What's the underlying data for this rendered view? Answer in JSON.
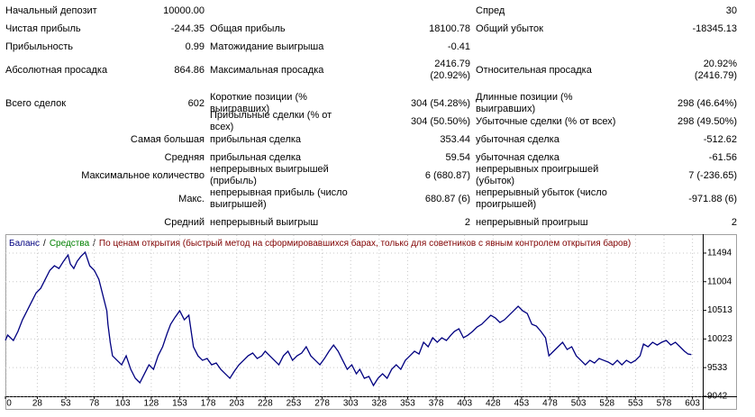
{
  "report": {
    "rows": [
      [
        [
          "Начальный депозит",
          "10000.00"
        ],
        null,
        [
          "Спред",
          "30"
        ]
      ],
      [
        [
          "Чистая прибыль",
          "-244.35"
        ],
        [
          "Общая прибыль",
          "18100.78"
        ],
        [
          "Общий убыток",
          "-18345.13"
        ]
      ],
      [
        [
          "Прибыльность",
          "0.99"
        ],
        [
          "Матожидание выигрыша",
          "-0.41"
        ],
        null
      ],
      [
        [
          "Абсолютная просадка",
          "864.86"
        ],
        [
          "Максимальная просадка",
          "2416.79\n(20.92%)"
        ],
        [
          "Относительная просадка",
          "20.92%\n(2416.79)"
        ]
      ],
      [
        [
          "Всего сделок",
          "602"
        ],
        [
          "Короткие позиции (% выигравших)",
          "304 (54.28%)"
        ],
        [
          "Длинные позиции (% выигравших)",
          "298 (46.64%)"
        ]
      ],
      [
        null,
        [
          "Прибыльные сделки (% от всех)",
          "304 (50.50%)"
        ],
        [
          "Убыточные сделки (% от всех)",
          "298 (49.50%)"
        ]
      ],
      [
        [
          "Самая большая"
        ],
        [
          "прибыльная сделка",
          "353.44"
        ],
        [
          "убыточная сделка",
          "-512.62"
        ]
      ],
      [
        [
          "Средняя"
        ],
        [
          "прибыльная сделка",
          "59.54"
        ],
        [
          "убыточная сделка",
          "-61.56"
        ]
      ],
      [
        [
          "Максимальное количество"
        ],
        [
          "непрерывных выигрышей (прибыль)",
          "6 (680.87)"
        ],
        [
          "непрерывных проигрышей (убыток)",
          "7 (-236.65)"
        ]
      ],
      [
        [
          "Макс."
        ],
        [
          "непрерывная прибыль (число выигрышей)",
          "680.87 (6)"
        ],
        [
          "непрерывный убыток (число проигрышей)",
          "-971.88 (6)"
        ]
      ],
      [
        [
          "Средний"
        ],
        [
          "непрерывный выигрыш",
          "2"
        ],
        [
          "непрерывный проигрыш",
          "2"
        ]
      ]
    ]
  },
  "chart_data": {
    "type": "line",
    "legend_separator": "/",
    "equity_label": "Средства",
    "equity_color": "#008000",
    "subtitle": "По ценам открытия (быстрый метод на сформировавшихся барах, только для советников с явным контролем открытия баров)",
    "subtitle_color": "#800000",
    "x": [
      0,
      2,
      7,
      11,
      15,
      19,
      23,
      27,
      31,
      35,
      39,
      43,
      47,
      51,
      55,
      57,
      60,
      63,
      66,
      70,
      74,
      78,
      82,
      86,
      89,
      90,
      92,
      94,
      98,
      102,
      106,
      110,
      114,
      118,
      122,
      126,
      130,
      134,
      138,
      142,
      145,
      149,
      153,
      157,
      161,
      165,
      169,
      173,
      177,
      181,
      185,
      189,
      193,
      197,
      201,
      205,
      209,
      213,
      217,
      221,
      225,
      228,
      232,
      236,
      240,
      244,
      248,
      252,
      256,
      260,
      264,
      268,
      272,
      276,
      280,
      284,
      288,
      292,
      296,
      300,
      304,
      308,
      311,
      315,
      319,
      323,
      327,
      331,
      335,
      339,
      343,
      347,
      351,
      355,
      359,
      363,
      367,
      371,
      375,
      379,
      383,
      387,
      391,
      394,
      398,
      402,
      406,
      410,
      414,
      418,
      422,
      426,
      430,
      434,
      438,
      442,
      446,
      450,
      454,
      458,
      462,
      466,
      470,
      474,
      477,
      481,
      485,
      489,
      493,
      497,
      501,
      505,
      509,
      513,
      517,
      521,
      525,
      529,
      533,
      537,
      541,
      545,
      549,
      553,
      557,
      560,
      564,
      568,
      572,
      576,
      580,
      584,
      588,
      592,
      596,
      599,
      602
    ],
    "series": [
      {
        "name": "Баланс",
        "color": "#000080",
        "values": [
          10000,
          10090,
          9997,
          10152,
          10352,
          10506,
          10660,
          10814,
          10891,
          11045,
          11199,
          11276,
          11230,
          11354,
          11461,
          11307,
          11230,
          11354,
          11431,
          11508,
          11276,
          11199,
          11045,
          10737,
          10506,
          10275,
          9967,
          9735,
          9658,
          9581,
          9735,
          9504,
          9350,
          9273,
          9427,
          9581,
          9504,
          9735,
          9890,
          10121,
          10275,
          10398,
          10506,
          10352,
          10429,
          9890,
          9735,
          9658,
          9689,
          9581,
          9612,
          9504,
          9427,
          9350,
          9473,
          9581,
          9658,
          9735,
          9782,
          9689,
          9735,
          9813,
          9735,
          9658,
          9581,
          9735,
          9813,
          9658,
          9735,
          9782,
          9890,
          9735,
          9658,
          9581,
          9689,
          9813,
          9920,
          9813,
          9658,
          9504,
          9581,
          9427,
          9504,
          9350,
          9381,
          9227,
          9350,
          9427,
          9350,
          9504,
          9581,
          9504,
          9658,
          9735,
          9813,
          9766,
          9967,
          9890,
          10044,
          9967,
          10044,
          9997,
          10090,
          10152,
          10198,
          10044,
          10090,
          10152,
          10229,
          10275,
          10352,
          10429,
          10383,
          10306,
          10352,
          10429,
          10506,
          10583,
          10506,
          10460,
          10275,
          10244,
          10152,
          10044,
          9735,
          9813,
          9890,
          9967,
          9843,
          9890,
          9735,
          9658,
          9581,
          9658,
          9612,
          9689,
          9658,
          9628,
          9581,
          9658,
          9581,
          9658,
          9612,
          9658,
          9735,
          9936,
          9890,
          9967,
          9920,
          9967,
          9997,
          9920,
          9967,
          9890,
          9813,
          9766,
          9756
        ]
      }
    ],
    "xlim": [
      0,
      612
    ],
    "xticks": [
      0,
      28,
      53,
      78,
      103,
      128,
      153,
      178,
      203,
      228,
      253,
      278,
      303,
      328,
      353,
      378,
      403,
      428,
      453,
      478,
      503,
      528,
      553,
      578,
      603
    ],
    "ylim": [
      9042,
      11802
    ],
    "yticks": [
      9042,
      9533,
      10023,
      10513,
      11004,
      11494
    ],
    "grid": true
  }
}
